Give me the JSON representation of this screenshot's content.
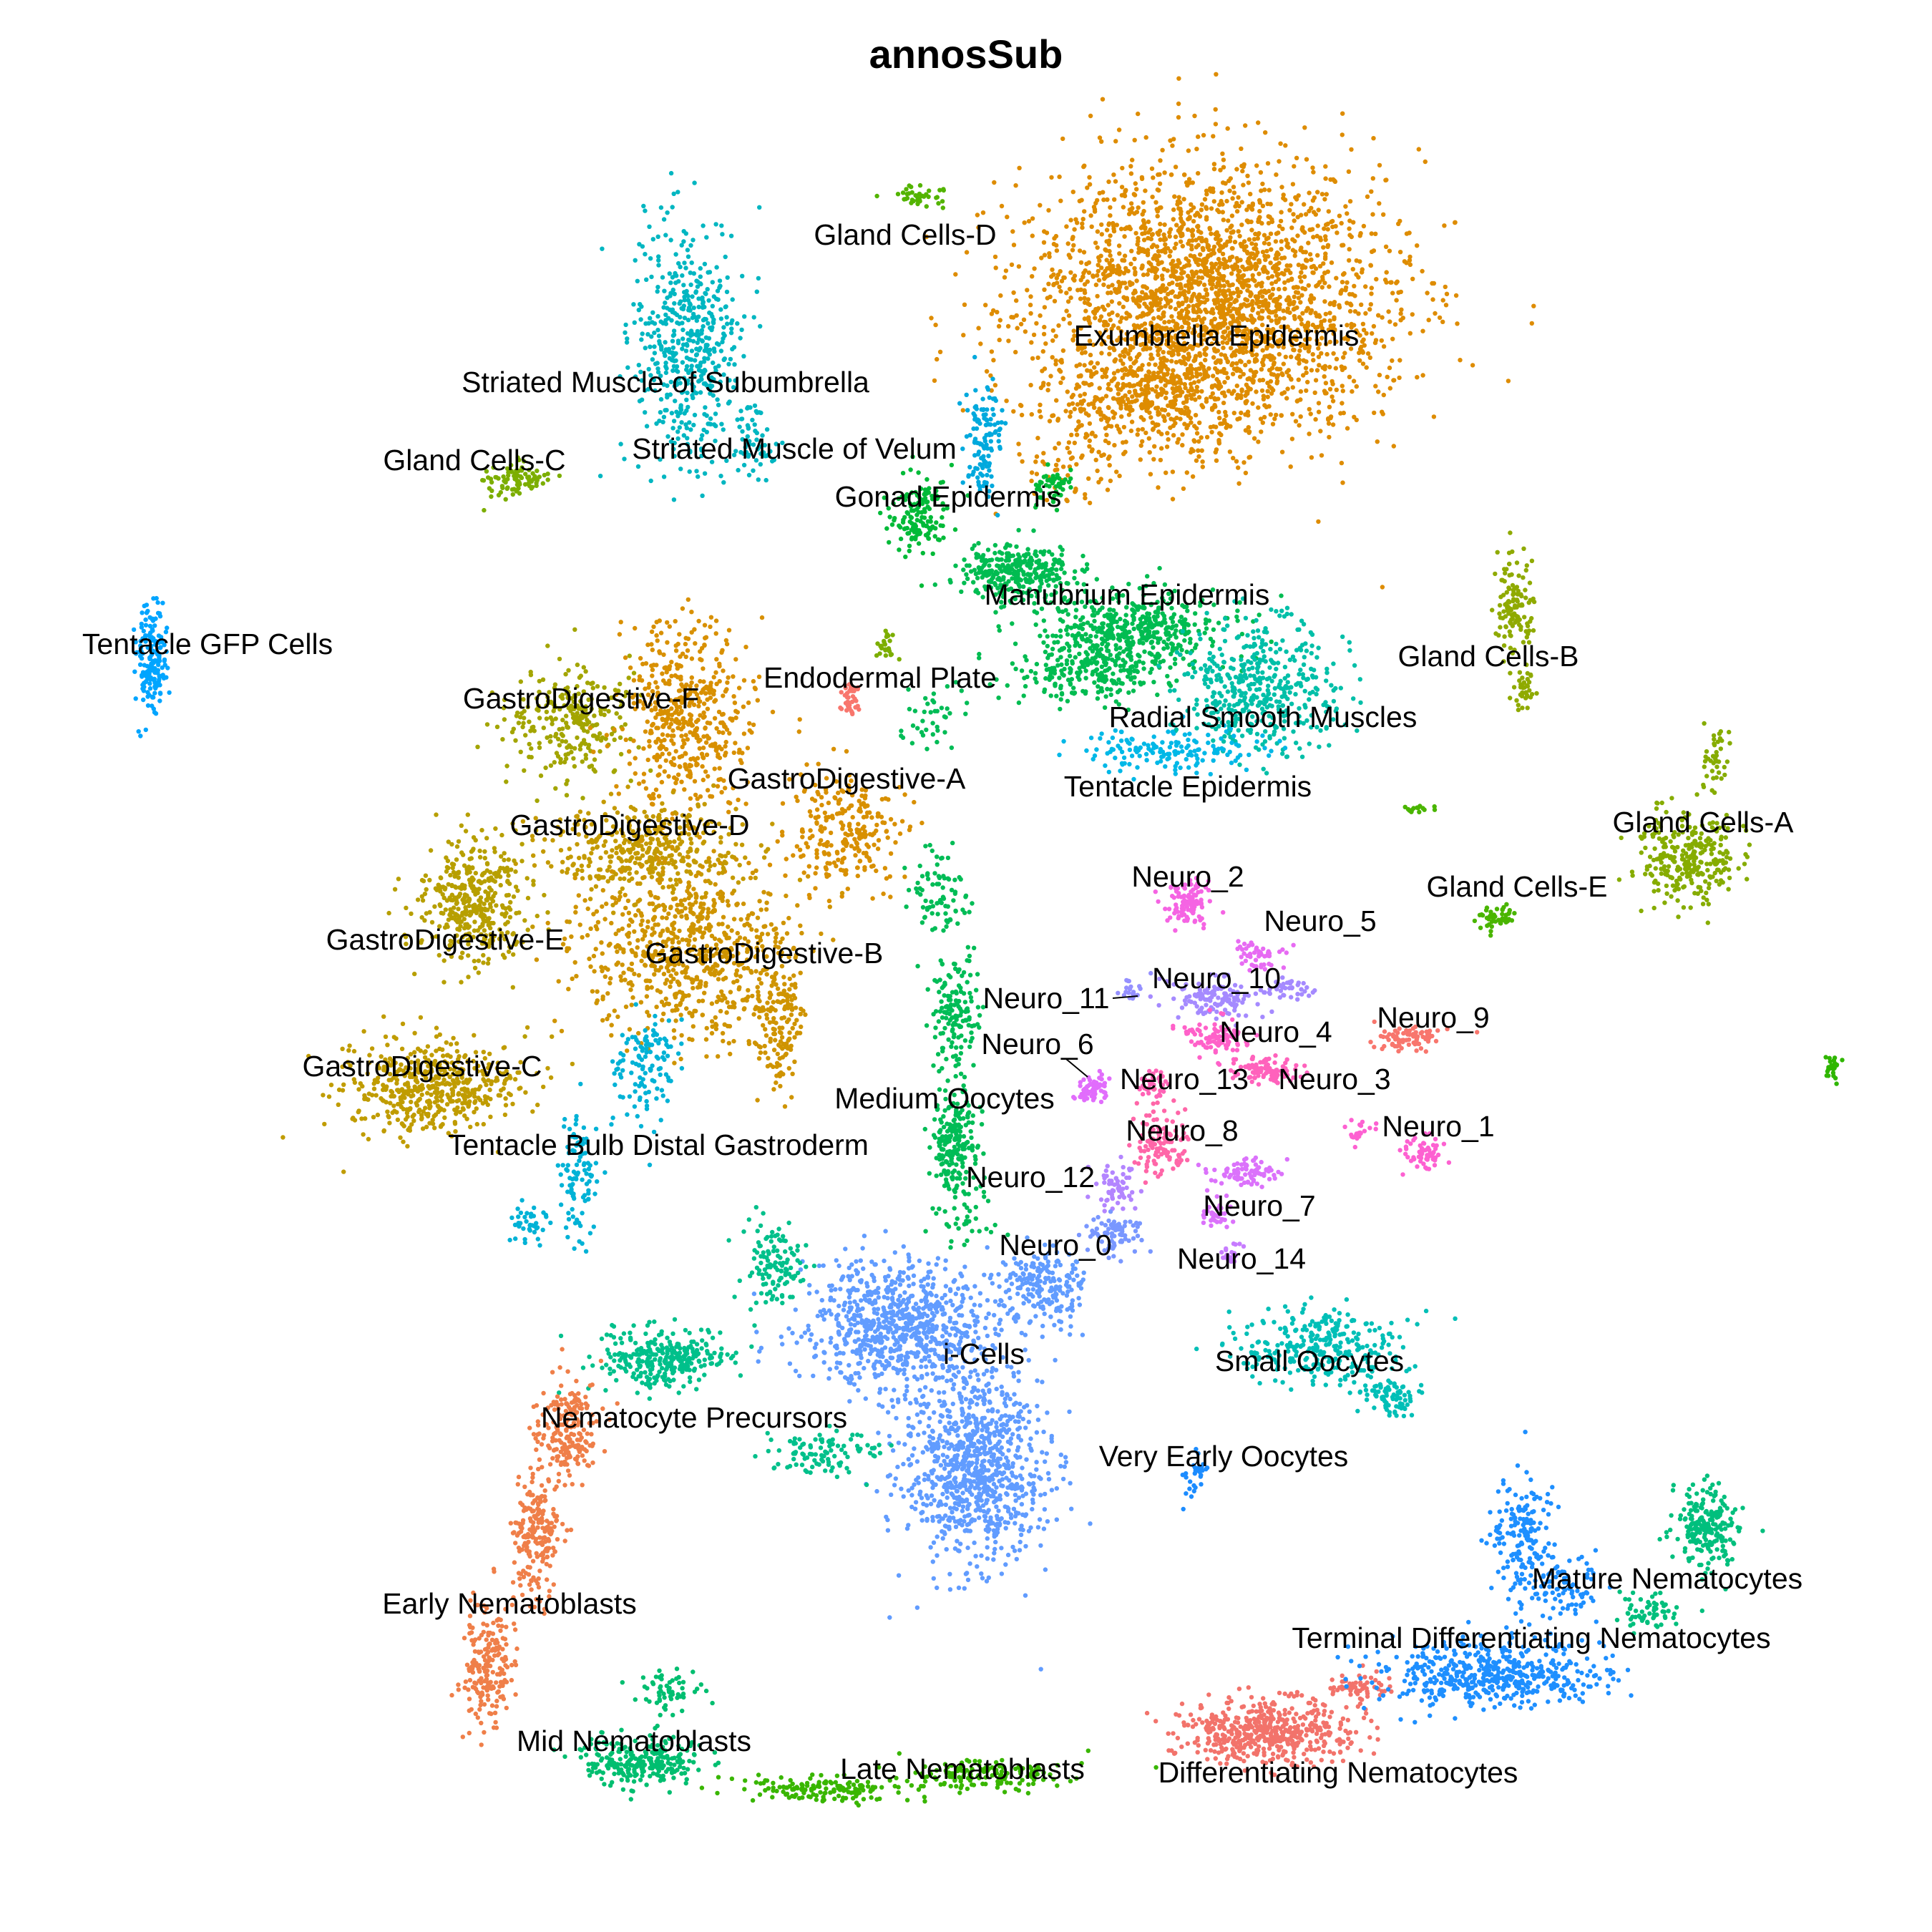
{
  "chart_data": {
    "type": "scatter",
    "title": "annosSub",
    "xlabel": "",
    "ylabel": "",
    "axes_visible": false,
    "grid": false,
    "legend": "none",
    "clusters": [
      {
        "name": "Gland Cells-D",
        "color": "#53B400",
        "label": [
          1265,
          331
        ],
        "blobs": [
          [
            1290,
            275,
            36,
            14,
            40
          ]
        ]
      },
      {
        "name": "Exumbrella Epidermis",
        "color": "#DE8C00",
        "label": [
          1700,
          472
        ],
        "blobs": [
          [
            1690,
            420,
            230,
            170,
            2600
          ],
          [
            1620,
            560,
            120,
            60,
            300
          ],
          [
            1500,
            620,
            60,
            80,
            80
          ]
        ]
      },
      {
        "name": "Striated Muscle of Subumbrella",
        "color": "#00B6C1",
        "label": [
          930,
          537
        ],
        "blobs": [
          [
            960,
            480,
            65,
            160,
            500
          ],
          [
            1050,
            620,
            30,
            60,
            60
          ]
        ]
      },
      {
        "name": "Striated Muscle of Velum",
        "color": "#00A9DD",
        "label": [
          1110,
          630
        ],
        "blobs": [
          [
            1375,
            615,
            22,
            70,
            120
          ]
        ]
      },
      {
        "name": "Gland Cells-C",
        "color": "#7CAE00",
        "label": [
          663,
          646
        ],
        "blobs": [
          [
            720,
            670,
            40,
            22,
            90
          ]
        ]
      },
      {
        "name": "Gonad Epidermis",
        "color": "#00BA38",
        "label": [
          1325,
          697
        ],
        "blobs": [
          [
            1280,
            720,
            40,
            50,
            140
          ],
          [
            1470,
            680,
            20,
            25,
            50
          ]
        ]
      },
      {
        "name": "Manubrium Epidermis",
        "color": "#00BC51",
        "label": [
          1575,
          834
        ],
        "blobs": [
          [
            1420,
            800,
            70,
            35,
            300
          ],
          [
            1580,
            880,
            120,
            50,
            500
          ],
          [
            1520,
            940,
            100,
            40,
            200
          ]
        ]
      },
      {
        "name": "Radial Smooth Muscles",
        "color": "#00BFA8",
        "label": [
          1765,
          1005
        ],
        "blobs": [
          [
            1760,
            960,
            100,
            80,
            450
          ]
        ]
      },
      {
        "name": "Tentacle Epidermis",
        "color": "#00B8E7",
        "label": [
          1660,
          1102
        ],
        "blobs": [
          [
            1640,
            1050,
            120,
            30,
            150
          ]
        ]
      },
      {
        "name": "Tentacle GFP Cells",
        "color": "#00A5FF",
        "label": [
          290,
          903
        ],
        "blobs": [
          [
            210,
            920,
            20,
            65,
            180
          ]
        ]
      },
      {
        "name": "Gland Cells-B",
        "color": "#8FAA00",
        "label": [
          2080,
          920
        ],
        "blobs": [
          [
            2115,
            845,
            25,
            55,
            120
          ],
          [
            2130,
            965,
            15,
            25,
            40
          ]
        ]
      },
      {
        "name": "Endodermal Plate",
        "color": "#F8766D",
        "label": [
          1230,
          950
        ],
        "blobs": [
          [
            1190,
            975,
            15,
            30,
            40
          ]
        ]
      },
      {
        "name": "GastroDigestive-F",
        "color": "#A3A500",
        "label": [
          812,
          979
        ],
        "blobs": [
          [
            800,
            1010,
            80,
            70,
            260
          ]
        ]
      },
      {
        "name": "GastroDigestive-A",
        "color": "#D89000",
        "label": [
          1183,
          1091
        ],
        "blobs": [
          [
            960,
            1000,
            80,
            120,
            500
          ],
          [
            1180,
            1160,
            80,
            70,
            250
          ]
        ]
      },
      {
        "name": "GastroDigestive-D",
        "color": "#C49A00",
        "label": [
          880,
          1156
        ],
        "blobs": [
          [
            900,
            1190,
            120,
            60,
            400
          ]
        ]
      },
      {
        "name": "GastroDigestive-E",
        "color": "#B79F00",
        "label": [
          622,
          1316
        ],
        "blobs": [
          [
            660,
            1260,
            70,
            80,
            400
          ]
        ]
      },
      {
        "name": "GastroDigestive-B",
        "color": "#CF9400",
        "label": [
          1068,
          1335
        ],
        "blobs": [
          [
            960,
            1330,
            130,
            110,
            700
          ],
          [
            1090,
            1430,
            30,
            100,
            150
          ]
        ]
      },
      {
        "name": "GastroDigestive-C",
        "color": "#C09C00",
        "label": [
          590,
          1493
        ],
        "blobs": [
          [
            600,
            1520,
            110,
            60,
            500
          ]
        ]
      },
      {
        "name": "Tentacle Bulb Distal Gastroderm",
        "color": "#00B2D6",
        "label": [
          920,
          1603
        ],
        "blobs": [
          [
            900,
            1490,
            40,
            70,
            120
          ],
          [
            810,
            1650,
            25,
            80,
            100
          ],
          [
            740,
            1710,
            25,
            30,
            40
          ]
        ]
      },
      {
        "name": "Gland Cells-A",
        "color": "#86AC00",
        "label": [
          2380,
          1152
        ],
        "blobs": [
          [
            2360,
            1200,
            60,
            60,
            280
          ],
          [
            2400,
            1050,
            20,
            40,
            40
          ]
        ]
      },
      {
        "name": "Gland Cells-E",
        "color": "#4AB500",
        "label": [
          2120,
          1242
        ],
        "blobs": [
          [
            2090,
            1280,
            30,
            15,
            50
          ],
          [
            1980,
            1130,
            20,
            8,
            15
          ]
        ]
      },
      {
        "name": "Neuro_2",
        "color": "#F564E3",
        "label": [
          1660,
          1228
        ],
        "blobs": [
          [
            1660,
            1265,
            30,
            30,
            100
          ]
        ]
      },
      {
        "name": "Neuro_5",
        "color": "#E76BF3",
        "label": [
          1845,
          1290
        ],
        "blobs": [
          [
            1755,
            1335,
            30,
            15,
            50
          ]
        ]
      },
      {
        "name": "Neuro_10",
        "color": "#A58AFF",
        "label": [
          1700,
          1370
        ],
        "blobs": [
          [
            1700,
            1395,
            60,
            25,
            120
          ],
          [
            1800,
            1380,
            30,
            15,
            40
          ]
        ]
      },
      {
        "name": "Neuro_11",
        "color": "#9590FF",
        "label": [
          1462,
          1398
        ],
        "blobs": [
          [
            1580,
            1385,
            20,
            15,
            20
          ]
        ]
      },
      {
        "name": "Neuro_9",
        "color": "#F8766D",
        "label": [
          2003,
          1425
        ],
        "blobs": [
          [
            1970,
            1450,
            40,
            15,
            80
          ]
        ]
      },
      {
        "name": "Neuro_4",
        "color": "#FF61C9",
        "label": [
          1783,
          1445
        ],
        "blobs": [
          [
            1700,
            1450,
            40,
            25,
            100
          ]
        ]
      },
      {
        "name": "Neuro_6",
        "color": "#E16DFC",
        "label": [
          1450,
          1462
        ],
        "blobs": [
          [
            1525,
            1520,
            20,
            20,
            60
          ]
        ]
      },
      {
        "name": "Neuro_3",
        "color": "#FF62BC",
        "label": [
          1865,
          1511
        ],
        "blobs": [
          [
            1770,
            1495,
            40,
            15,
            100
          ]
        ]
      },
      {
        "name": "Neuro_13",
        "color": "#FF63B6",
        "label": [
          1655,
          1511
        ],
        "blobs": [
          [
            1610,
            1515,
            20,
            15,
            40
          ]
        ]
      },
      {
        "name": "Medium Oocytes",
        "color": "#00BC56",
        "label": [
          1320,
          1538
        ],
        "blobs": [
          [
            1335,
            1600,
            30,
            60,
            200
          ],
          [
            1335,
            1420,
            30,
            80,
            150
          ],
          [
            1310,
            1250,
            40,
            60,
            80
          ]
        ]
      },
      {
        "name": "Neuro_1",
        "color": "#FD61D1",
        "label": [
          2010,
          1577
        ],
        "blobs": [
          [
            1985,
            1610,
            30,
            20,
            60
          ],
          [
            1900,
            1580,
            20,
            15,
            20
          ]
        ]
      },
      {
        "name": "Neuro_8",
        "color": "#FF66A8",
        "label": [
          1652,
          1583
        ],
        "blobs": [
          [
            1620,
            1595,
            35,
            40,
            120
          ]
        ]
      },
      {
        "name": "Neuro_12",
        "color": "#B385FF",
        "label": [
          1440,
          1648
        ],
        "blobs": [
          [
            1560,
            1660,
            30,
            30,
            60
          ]
        ]
      },
      {
        "name": "Neuro_7",
        "color": "#DB72FB",
        "label": [
          1760,
          1688
        ],
        "blobs": [
          [
            1745,
            1640,
            50,
            20,
            80
          ],
          [
            1700,
            1700,
            20,
            15,
            30
          ]
        ]
      },
      {
        "name": "Neuro_0",
        "color": "#7997FF",
        "label": [
          1475,
          1743
        ],
        "blobs": [
          [
            1560,
            1725,
            35,
            25,
            80
          ]
        ]
      },
      {
        "name": "Neuro_14",
        "color": "#C77CFF",
        "label": [
          1735,
          1762
        ],
        "blobs": [
          [
            1720,
            1750,
            15,
            15,
            20
          ]
        ]
      },
      {
        "name": "i-Cells",
        "color": "#619CFF",
        "label": [
          1375,
          1895
        ],
        "blobs": [
          [
            1260,
            1850,
            120,
            80,
            800
          ],
          [
            1360,
            2050,
            90,
            120,
            900
          ],
          [
            1460,
            1800,
            50,
            50,
            200
          ]
        ]
      },
      {
        "name": "Small Oocytes",
        "color": "#00BFB7",
        "label": [
          1830,
          1905
        ],
        "blobs": [
          [
            1850,
            1880,
            110,
            50,
            300
          ],
          [
            1940,
            1950,
            30,
            25,
            80
          ]
        ]
      },
      {
        "name": "Nematocyte Precursors",
        "color": "#00C08B",
        "label": [
          970,
          1984
        ],
        "blobs": [
          [
            930,
            1900,
            80,
            40,
            300
          ],
          [
            1080,
            1770,
            40,
            50,
            120
          ],
          [
            1150,
            2030,
            70,
            30,
            100
          ]
        ]
      },
      {
        "name": "Very Early Oocytes",
        "color": "#1C8CFF",
        "label": [
          1710,
          2038
        ],
        "blobs": [
          [
            1670,
            2060,
            15,
            25,
            30
          ]
        ]
      },
      {
        "name": "Early Nematoblasts",
        "color": "#EF7F49",
        "label": [
          712,
          2244
        ],
        "blobs": [
          [
            790,
            2000,
            40,
            70,
            200
          ],
          [
            750,
            2150,
            30,
            80,
            200
          ],
          [
            680,
            2330,
            30,
            80,
            200
          ]
        ]
      },
      {
        "name": "Mid Nematoblasts",
        "color": "#00BE70",
        "label": [
          886,
          2436
        ],
        "blobs": [
          [
            900,
            2460,
            80,
            30,
            250
          ],
          [
            930,
            2370,
            40,
            30,
            60
          ]
        ]
      },
      {
        "name": "Late Nematoblasts",
        "color": "#39B600",
        "label": [
          1345,
          2475
        ],
        "blobs": [
          [
            1150,
            2500,
            110,
            15,
            150
          ],
          [
            1380,
            2480,
            100,
            20,
            150
          ]
        ]
      },
      {
        "name": "Differentiating Nematocytes",
        "color": "#F2736B",
        "label": [
          1870,
          2480
        ],
        "blobs": [
          [
            1770,
            2420,
            110,
            40,
            500
          ],
          [
            1900,
            2360,
            40,
            20,
            60
          ]
        ]
      },
      {
        "name": "Terminal Differentiating Nematocytes",
        "color": "#1E8FFF",
        "label": [
          2140,
          2292
        ],
        "blobs": [
          [
            2080,
            2340,
            150,
            40,
            500
          ],
          [
            2130,
            2150,
            40,
            80,
            180
          ],
          [
            2190,
            2220,
            40,
            40,
            80
          ]
        ]
      },
      {
        "name": "Mature Nematocytes",
        "color": "#00BF7D",
        "label": [
          2330,
          2209
        ],
        "blobs": [
          [
            2385,
            2130,
            40,
            50,
            220
          ],
          [
            2300,
            2250,
            40,
            25,
            60
          ]
        ]
      }
    ],
    "stray_points": [
      {
        "color": "#2FB600",
        "blobs": [
          [
            2560,
            1490,
            12,
            15,
            25
          ]
        ]
      },
      {
        "color": "#7CAE00",
        "blobs": [
          [
            1240,
            900,
            15,
            20,
            25
          ]
        ]
      },
      {
        "color": "#00BC56",
        "blobs": [
          [
            1300,
            1000,
            40,
            40,
            40
          ],
          [
            1350,
            1700,
            40,
            40,
            40
          ]
        ]
      }
    ]
  }
}
